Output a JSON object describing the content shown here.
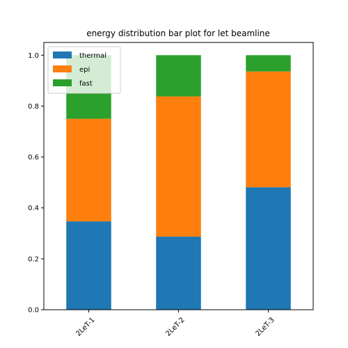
{
  "chart_data": {
    "type": "bar",
    "stacked": true,
    "title": "energy distribution bar plot for let beamline",
    "xlabel": "",
    "ylabel": "",
    "categories": [
      "2LeT-1",
      "2LeT-2",
      "2LeT-3"
    ],
    "series": [
      {
        "name": "thermal",
        "color": "#1f77b4",
        "values": [
          0.347,
          0.287,
          0.481
        ]
      },
      {
        "name": "epi",
        "color": "#ff7f0e",
        "values": [
          0.403,
          0.551,
          0.455
        ]
      },
      {
        "name": "fast",
        "color": "#2ca02c",
        "values": [
          0.25,
          0.162,
          0.064
        ]
      }
    ],
    "ylim": [
      0,
      1.05
    ],
    "yticks": [
      0.0,
      0.2,
      0.4,
      0.6,
      0.8,
      1.0
    ],
    "ytick_labels": [
      "0.0",
      "0.2",
      "0.4",
      "0.6",
      "0.8",
      "1.0"
    ],
    "xtick_rotation": 45,
    "legend_position": "top-left",
    "grid": false
  }
}
